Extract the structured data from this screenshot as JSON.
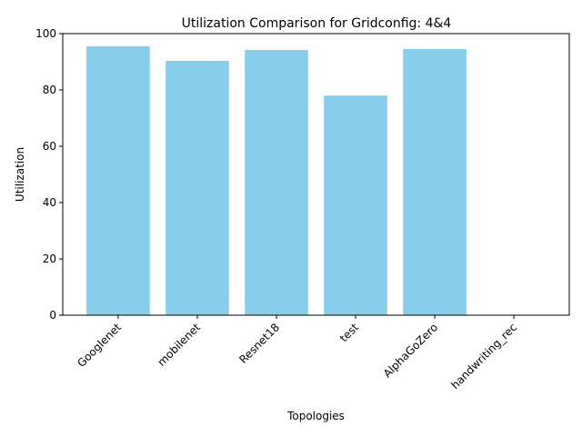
{
  "chart_data": {
    "type": "bar",
    "title": "Utilization Comparison for Gridconfig: 4&4",
    "xlabel": "Topologies",
    "ylabel": "Utilization",
    "categories": [
      "Googlenet",
      "mobilenet",
      "Resnet18",
      "test",
      "AlphaGoZero",
      "handwriting_rec"
    ],
    "values": [
      95.5,
      90.3,
      94.2,
      78.0,
      94.5,
      0
    ],
    "ylim": [
      0,
      100
    ],
    "yticks": [
      0,
      20,
      40,
      60,
      80,
      100
    ],
    "bar_color": "#87ceeb",
    "grid": false,
    "legend": "none"
  }
}
